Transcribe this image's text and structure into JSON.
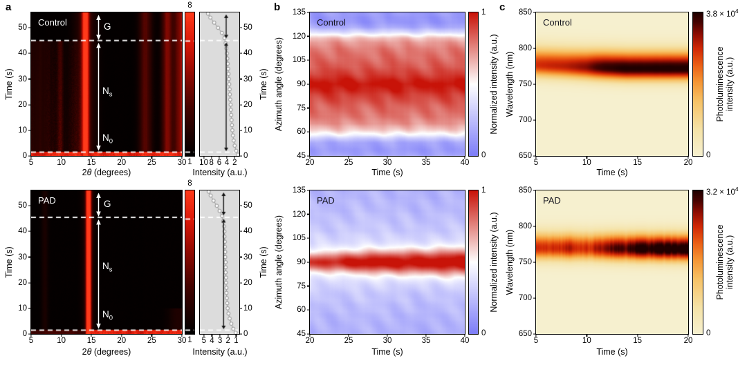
{
  "panels": {
    "a": {
      "letter": "a",
      "ylabel": "Time (s)",
      "xlabel": {
        "pre": "2",
        "theta": "θ",
        "post": " (degrees)"
      },
      "side_xlabel": "Intensity (a.u.)",
      "side_ylabel": "Time (s)",
      "rows": [
        {
          "title": "Control",
          "cb_top": "8",
          "cb_bottom": "1",
          "regions": {
            "g": "G",
            "ns_base": "N",
            "ns_sub": "s",
            "n0_base": "N",
            "n0_sub": "0"
          }
        },
        {
          "title": "PAD",
          "cb_top": "8",
          "cb_bottom": "1",
          "regions": {
            "g": "G",
            "ns_base": "N",
            "ns_sub": "s",
            "n0_base": "N",
            "n0_sub": "0"
          }
        }
      ]
    },
    "b": {
      "letter": "b",
      "ylabel": "Azimuth angle (degrees)",
      "xlabel": "Time (s)",
      "cb_label": "Normalized intensity (a.u.)",
      "cb_top": "1",
      "cb_bottom": "0",
      "rows": [
        {
          "title": "Control"
        },
        {
          "title": "PAD"
        }
      ]
    },
    "c": {
      "letter": "c",
      "ylabel": "Wavelength (nm)",
      "xlabel": "Time (s)",
      "cb_label_line1": "Photoluminescence",
      "cb_label_line2": "intensity (a.u.)",
      "cb_bottom": "0",
      "rows": [
        {
          "title": "Control",
          "cb_max_mant": "3.8 × 10",
          "cb_max_exp": "4"
        },
        {
          "title": "PAD",
          "cb_max_mant": "3.2 × 10",
          "cb_max_exp": "4"
        }
      ]
    }
  },
  "axes": {
    "a_main_x": {
      "min": 5,
      "max": 30,
      "ticks": [
        5,
        10,
        15,
        20,
        25,
        30
      ]
    },
    "a_main_y": {
      "min": 0,
      "max": 56,
      "ticks": [
        0,
        10,
        20,
        30,
        40,
        50
      ]
    },
    "a_side_x_control": {
      "min": 11,
      "max": 0.8,
      "ticks": [
        10,
        8,
        6,
        4,
        2
      ]
    },
    "a_side_x_pad": {
      "min": 5.5,
      "max": 0.6,
      "ticks": [
        5,
        4,
        3,
        2,
        1
      ]
    },
    "a_side_y": {
      "min": 0,
      "max": 56,
      "ticks": [
        0,
        10,
        20,
        30,
        40,
        50
      ]
    },
    "b_x": {
      "min": 20,
      "max": 40,
      "ticks": [
        20,
        25,
        30,
        35,
        40
      ]
    },
    "b_y": {
      "min": 45,
      "max": 135,
      "ticks": [
        45,
        60,
        75,
        90,
        105,
        120,
        135
      ]
    },
    "c_x": {
      "min": 5,
      "max": 20,
      "ticks": [
        5,
        10,
        15,
        20
      ]
    },
    "c_y": {
      "min": 650,
      "max": 850,
      "ticks": [
        650,
        700,
        750,
        800,
        850
      ]
    }
  },
  "chart_data": {
    "a_control_map": {
      "type": "xrd_heatmap",
      "title": "Control",
      "xlabel": "2θ (degrees)",
      "ylabel": "Time (s)",
      "two_theta": [
        5,
        30
      ],
      "t_max": 56,
      "dash_t": [
        45,
        1.5
      ],
      "base": 0.012,
      "colormap": [
        [
          0,
          "#000000"
        ],
        [
          0.33,
          "#430300"
        ],
        [
          0.58,
          "#930a02"
        ],
        [
          0.78,
          "#d81708"
        ],
        [
          1,
          "#ff3a1a"
        ]
      ],
      "bands": [
        {
          "center": 14.0,
          "sigma": 0.42,
          "amp": 1.15
        },
        {
          "center": 14.0,
          "sigma": 1.2,
          "amp": 0.22
        },
        {
          "center": 9.8,
          "sigma": 0.3,
          "amp": 0.2,
          "t_max": 45
        },
        {
          "center": 6.3,
          "sigma": 1.3,
          "amp": 0.13,
          "t_max": 45
        },
        {
          "center": 24.0,
          "sigma": 0.75,
          "amp": 0.34
        },
        {
          "center": 27.6,
          "sigma": 0.6,
          "amp": 0.46
        },
        {
          "center": 29.9,
          "sigma": 0.8,
          "amp": 0.55
        }
      ],
      "haze": {
        "t_max": 45,
        "q_max": 13.4,
        "amp": 0.15
      },
      "strip": {
        "t": 1.4,
        "amp": 0.85
      },
      "annotations": {
        "G_span_t": [
          45,
          56
        ],
        "Ns_N0_span_t": [
          1.5,
          45
        ]
      }
    },
    "a_pad_map": {
      "type": "xrd_heatmap",
      "title": "PAD",
      "xlabel": "2θ (degrees)",
      "ylabel": "Time (s)",
      "two_theta": [
        5,
        30
      ],
      "t_max": 56,
      "dash_t": [
        45.5,
        1.5
      ],
      "base": 0.012,
      "colormap": [
        [
          0,
          "#000000"
        ],
        [
          0.33,
          "#430300"
        ],
        [
          0.58,
          "#930a02"
        ],
        [
          0.78,
          "#d81708"
        ],
        [
          1,
          "#ff3a1a"
        ]
      ],
      "bands": [
        {
          "center": 14.5,
          "sigma": 0.3,
          "amp": 1.2
        },
        {
          "center": 14.5,
          "sigma": 0.75,
          "amp": 0.15
        },
        {
          "center": 7.2,
          "sigma": 0.4,
          "amp": 0.1
        },
        {
          "center": 29.5,
          "sigma": 1.2,
          "amp": 0.12,
          "t_max": 10
        }
      ],
      "strip": {
        "t": 1.4,
        "amp": 0.8,
        "q_from": 14.0,
        "amp_left": 0.3
      },
      "annotations": {
        "G_span_t": [
          45.5,
          56
        ],
        "Ns_N0_span_t": [
          1.5,
          45.5
        ]
      }
    },
    "a_colorbar": {
      "type": "colorbar",
      "tick_top": "8",
      "tick_bottom": "1",
      "stops": [
        [
          0,
          "#000000"
        ],
        [
          0.33,
          "#430300"
        ],
        [
          0.58,
          "#930a02"
        ],
        [
          0.78,
          "#d81708"
        ],
        [
          1,
          "#ff3a1a"
        ]
      ],
      "dash_fracs": [
        0.8,
        0.027
      ]
    },
    "a_side_control": {
      "type": "scatter",
      "xlabel": "Intensity (a.u.)",
      "ylabel": "Time (s)",
      "x_range": [
        11,
        0.8
      ],
      "t_max": 56,
      "dash_t": [
        45,
        1.5
      ],
      "bg": "#dcdcdc",
      "arrow_x": 4.2,
      "arrow_segments": [
        [
          1.9,
          44.3
        ],
        [
          45.9,
          55.2
        ]
      ],
      "points": [
        [
          0.5,
          1.15
        ],
        [
          2,
          1.6
        ],
        [
          4,
          2.0
        ],
        [
          6,
          2.25
        ],
        [
          8,
          2.45
        ],
        [
          10,
          2.6
        ],
        [
          12,
          2.7
        ],
        [
          14,
          2.8
        ],
        [
          16,
          2.9
        ],
        [
          18,
          3.0
        ],
        [
          20,
          3.05
        ],
        [
          22,
          3.15
        ],
        [
          24,
          3.25
        ],
        [
          26,
          3.3
        ],
        [
          28,
          3.4
        ],
        [
          30,
          3.5
        ],
        [
          32,
          3.6
        ],
        [
          34,
          3.7
        ],
        [
          36,
          3.8
        ],
        [
          38,
          3.9
        ],
        [
          40,
          4.0
        ],
        [
          42,
          4.15
        ],
        [
          44,
          4.35
        ],
        [
          46,
          4.65
        ],
        [
          48,
          5.3
        ],
        [
          50,
          6.3
        ],
        [
          52,
          7.3
        ],
        [
          54,
          8.3
        ],
        [
          55.5,
          8.9
        ]
      ]
    },
    "a_side_pad": {
      "type": "scatter",
      "xlabel": "Intensity (a.u.)",
      "ylabel": "Time (s)",
      "x_range": [
        5.5,
        0.6
      ],
      "t_max": 56,
      "dash_t": [
        45.5,
        1.5
      ],
      "bg": "#dcdcdc",
      "arrow_x": 2.55,
      "arrow_segments": [
        [
          1.9,
          44.8
        ],
        [
          46.3,
          55.2
        ]
      ],
      "points": [
        [
          0.5,
          1.05
        ],
        [
          2,
          1.35
        ],
        [
          4,
          1.6
        ],
        [
          6,
          1.8
        ],
        [
          8,
          1.95
        ],
        [
          10,
          2.05
        ],
        [
          12,
          2.1
        ],
        [
          14,
          2.15
        ],
        [
          16,
          2.2
        ],
        [
          18,
          2.2
        ],
        [
          20,
          2.25
        ],
        [
          22,
          2.25
        ],
        [
          24,
          2.3
        ],
        [
          26,
          2.3
        ],
        [
          28,
          2.3
        ],
        [
          30,
          2.35
        ],
        [
          32,
          2.35
        ],
        [
          34,
          2.4
        ],
        [
          36,
          2.4
        ],
        [
          38,
          2.45
        ],
        [
          40,
          2.45
        ],
        [
          42,
          2.5
        ],
        [
          44,
          2.6
        ],
        [
          46,
          2.75
        ],
        [
          48,
          3.05
        ],
        [
          50,
          3.4
        ],
        [
          52,
          3.8
        ],
        [
          54,
          4.15
        ],
        [
          55.5,
          4.4
        ]
      ]
    },
    "b_control_map": {
      "type": "azimuth_heatmap",
      "title": "Control",
      "xlabel": "Time (s)",
      "ylabel": "Azimuth angle (degrees)",
      "t_range": [
        20,
        40
      ],
      "az_range": [
        45,
        135
      ],
      "colormap": [
        [
          0,
          "#7d7df8"
        ],
        [
          0.5,
          "#ffffff"
        ],
        [
          1,
          "#c81308"
        ]
      ],
      "profile": [
        [
          45,
          0.15
        ],
        [
          49,
          0.1
        ],
        [
          53,
          0.14
        ],
        [
          56,
          0.3
        ],
        [
          58,
          0.46
        ],
        [
          61,
          0.6
        ],
        [
          65,
          0.72
        ],
        [
          70,
          0.78
        ],
        [
          76,
          0.82
        ],
        [
          83,
          0.9
        ],
        [
          88,
          0.98
        ],
        [
          90,
          1.0
        ],
        [
          92,
          0.97
        ],
        [
          96,
          0.9
        ],
        [
          101,
          0.84
        ],
        [
          107,
          0.81
        ],
        [
          112,
          0.79
        ],
        [
          116,
          0.74
        ],
        [
          119,
          0.65
        ],
        [
          121,
          0.52
        ],
        [
          123,
          0.36
        ],
        [
          126,
          0.18
        ],
        [
          129,
          0.11
        ],
        [
          132,
          0.1
        ],
        [
          135,
          0.13
        ]
      ]
    },
    "b_pad_map": {
      "type": "azimuth_heatmap",
      "title": "PAD",
      "xlabel": "Time (s)",
      "ylabel": "Azimuth angle (degrees)",
      "t_range": [
        20,
        40
      ],
      "az_range": [
        45,
        135
      ],
      "colormap": [
        [
          0,
          "#7d7df8"
        ],
        [
          0.5,
          "#ffffff"
        ],
        [
          1,
          "#c81308"
        ]
      ],
      "profile": [
        [
          45,
          0.21
        ],
        [
          55,
          0.23
        ],
        [
          63,
          0.26
        ],
        [
          70,
          0.29
        ],
        [
          76,
          0.33
        ],
        [
          80,
          0.38
        ],
        [
          83,
          0.43
        ],
        [
          86,
          0.47
        ],
        [
          90,
          0.5
        ],
        [
          94,
          0.47
        ],
        [
          97,
          0.43
        ],
        [
          100,
          0.38
        ],
        [
          104,
          0.33
        ],
        [
          110,
          0.29
        ],
        [
          117,
          0.26
        ],
        [
          125,
          0.23
        ],
        [
          135,
          0.21
        ]
      ],
      "peak": {
        "center": 90,
        "amp_vs_t": [
          [
            20,
            0.42
          ],
          [
            24,
            0.48
          ],
          [
            27,
            0.53
          ],
          [
            40,
            0.56
          ]
        ],
        "sigma_vs_t": [
          [
            20,
            3.8
          ],
          [
            30,
            5.0
          ],
          [
            40,
            5.8
          ]
        ]
      }
    },
    "b_colorbar": {
      "type": "colorbar",
      "tick_top": "1",
      "tick_bottom": "0",
      "label": "Normalized intensity (a.u.)",
      "stops": [
        [
          0,
          "#7d7df8"
        ],
        [
          0.5,
          "#ffffff"
        ],
        [
          1,
          "#c81308"
        ]
      ]
    },
    "c_control_map": {
      "type": "pl_heatmap",
      "title": "Control",
      "xlabel": "Time (s)",
      "ylabel": "Wavelength (nm)",
      "t_range": [
        5,
        20
      ],
      "wl_range": [
        650,
        850
      ],
      "colormap": [
        [
          0,
          "#f6f0cf"
        ],
        [
          0.18,
          "#f5e3a9"
        ],
        [
          0.38,
          "#f6c267"
        ],
        [
          0.52,
          "#f59433"
        ],
        [
          0.64,
          "#ea5c14"
        ],
        [
          0.75,
          "#d02806"
        ],
        [
          0.85,
          "#8d0d03"
        ],
        [
          0.93,
          "#470301"
        ],
        [
          1,
          "#200000"
        ]
      ],
      "amp_vs_t": [
        [
          5,
          0.74
        ],
        [
          8,
          0.78
        ],
        [
          10,
          0.85
        ],
        [
          11,
          0.93
        ],
        [
          12,
          0.97
        ],
        [
          14,
          1.0
        ],
        [
          20,
          1.0
        ]
      ],
      "center_vs_t": [
        [
          5,
          777
        ],
        [
          10,
          774
        ],
        [
          14,
          772
        ],
        [
          20,
          772
        ]
      ],
      "sigma_up": 17,
      "sigma_dn": 12,
      "streaks": false,
      "cb_max_label": "3.8 × 10⁴"
    },
    "c_pad_map": {
      "type": "pl_heatmap",
      "title": "PAD",
      "xlabel": "Time (s)",
      "ylabel": "Wavelength (nm)",
      "t_range": [
        5,
        20
      ],
      "wl_range": [
        650,
        850
      ],
      "colormap": [
        [
          0,
          "#f6f0cf"
        ],
        [
          0.18,
          "#f5e3a9"
        ],
        [
          0.38,
          "#f6c267"
        ],
        [
          0.52,
          "#f59433"
        ],
        [
          0.64,
          "#ea5c14"
        ],
        [
          0.75,
          "#d02806"
        ],
        [
          0.85,
          "#8d0d03"
        ],
        [
          0.93,
          "#470301"
        ],
        [
          1,
          "#200000"
        ]
      ],
      "amp_vs_t": [
        [
          5,
          0.78
        ],
        [
          9,
          0.8
        ],
        [
          11,
          0.76
        ],
        [
          12,
          0.83
        ],
        [
          13,
          0.9
        ],
        [
          15,
          0.96
        ],
        [
          17,
          1.0
        ],
        [
          20,
          1.0
        ]
      ],
      "center_vs_t": [
        [
          5,
          770
        ],
        [
          20,
          768
        ]
      ],
      "sigma_up": 15,
      "sigma_dn": 12,
      "streaks": true,
      "cb_max_label": "3.2 × 10⁴"
    },
    "c_colorbar": {
      "type": "colorbar",
      "tick_bottom": "0",
      "label": "Photoluminescence intensity (a.u.)",
      "stops": [
        [
          0,
          "#f6f0cf"
        ],
        [
          0.18,
          "#f5e3a9"
        ],
        [
          0.38,
          "#f6c267"
        ],
        [
          0.52,
          "#f59433"
        ],
        [
          0.64,
          "#ea5c14"
        ],
        [
          0.75,
          "#d02806"
        ],
        [
          0.85,
          "#8d0d03"
        ],
        [
          0.93,
          "#470301"
        ],
        [
          1,
          "#200000"
        ]
      ]
    }
  }
}
